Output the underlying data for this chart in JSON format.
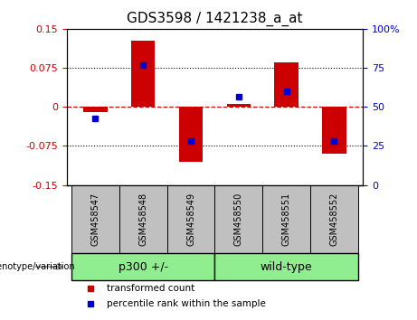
{
  "title": "GDS3598 / 1421238_a_at",
  "samples": [
    "GSM458547",
    "GSM458548",
    "GSM458549",
    "GSM458550",
    "GSM458551",
    "GSM458552"
  ],
  "red_bars": [
    -0.01,
    0.127,
    -0.105,
    0.005,
    0.085,
    -0.09
  ],
  "blue_squares_left": [
    -0.022,
    0.08,
    -0.065,
    0.02,
    0.03,
    -0.065
  ],
  "ylim_left": [
    -0.15,
    0.15
  ],
  "ylim_right": [
    0,
    100
  ],
  "yticks_left": [
    -0.15,
    -0.075,
    0,
    0.075,
    0.15
  ],
  "yticks_right": [
    0,
    25,
    50,
    75,
    100
  ],
  "ytick_labels_right": [
    "0",
    "25",
    "50",
    "75",
    "100%"
  ],
  "bar_color": "#CC0000",
  "blue_color": "#0000CC",
  "zero_line_color": "#CC0000",
  "bar_width": 0.5,
  "title_fontsize": 11,
  "tick_fontsize": 8,
  "label_fontsize": 7.5,
  "group_label_fontsize": 9,
  "genotype_label": "genotype/variation",
  "legend_items": [
    {
      "color": "#CC0000",
      "label": "transformed count"
    },
    {
      "color": "#0000CC",
      "label": "percentile rank within the sample"
    }
  ],
  "group_bg_color": "#C0C0C0",
  "group_label_bg": "#90EE90",
  "group1_label": "p300 +/-",
  "group2_label": "wild-type"
}
